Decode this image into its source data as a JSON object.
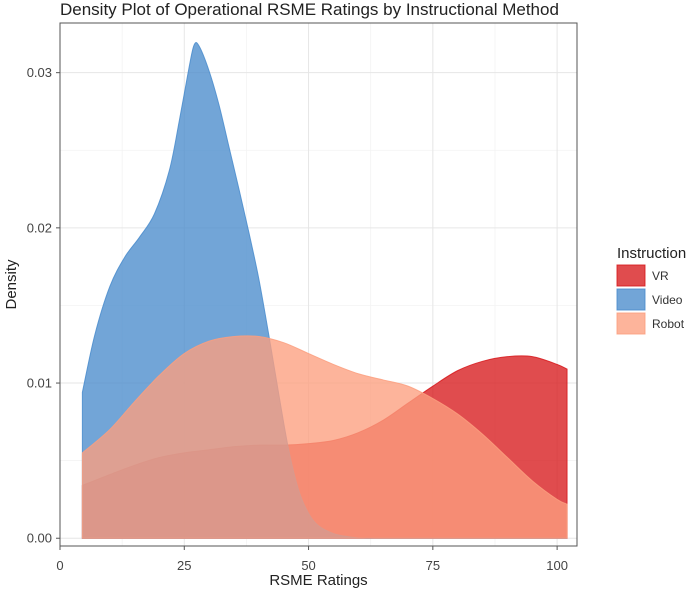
{
  "chart_data": {
    "type": "area",
    "title": "Density Plot of Operational RSME Ratings by Instructional Method",
    "xlabel": "RSME Ratings",
    "ylabel": "Density",
    "xlim": [
      0,
      104
    ],
    "ylim": [
      -0.0005,
      0.0332
    ],
    "x_ticks": [
      0,
      25,
      50,
      75,
      100
    ],
    "y_ticks": [
      0.0,
      0.01,
      0.02,
      0.03
    ],
    "x_tick_labels": [
      "0",
      "25",
      "50",
      "75",
      "100"
    ],
    "y_tick_labels": [
      "0.00",
      "0.01",
      "0.02",
      "0.03"
    ],
    "grid": true,
    "legend": {
      "title": "Instruction",
      "position": "right"
    },
    "series": [
      {
        "name": "VR",
        "color": "#d7191c",
        "x": [
          4.5,
          10,
          15,
          20,
          25,
          30,
          35,
          40,
          45,
          50,
          55,
          60,
          65,
          70,
          75,
          80,
          85,
          90,
          95,
          100,
          102
        ],
        "y": [
          0.0034,
          0.0041,
          0.0047,
          0.0052,
          0.0055,
          0.0057,
          0.0059,
          0.006,
          0.006,
          0.0061,
          0.0063,
          0.0068,
          0.0076,
          0.0087,
          0.0098,
          0.0108,
          0.0114,
          0.0117,
          0.0117,
          0.0112,
          0.0109
        ]
      },
      {
        "name": "Video",
        "color": "#4a8ccc",
        "x": [
          4.5,
          7,
          10,
          13,
          16,
          19,
          22,
          24,
          26,
          27,
          28,
          30,
          32,
          34,
          36,
          38,
          40,
          42,
          44,
          46,
          48,
          50,
          52,
          55,
          58,
          61,
          65,
          70,
          80,
          90,
          102
        ],
        "y": [
          0.0094,
          0.0131,
          0.0162,
          0.0181,
          0.0194,
          0.0209,
          0.0237,
          0.0269,
          0.0304,
          0.0318,
          0.0317,
          0.0301,
          0.0279,
          0.0252,
          0.0225,
          0.0197,
          0.0167,
          0.0131,
          0.0093,
          0.0057,
          0.0031,
          0.0016,
          0.0008,
          0.0003,
          0.0001,
          0.0,
          0.0,
          0.0,
          0.0,
          0.0,
          0.0
        ]
      },
      {
        "name": "Robot",
        "color": "#fc9f7f",
        "x": [
          4.5,
          10,
          15,
          20,
          25,
          30,
          35,
          40,
          45,
          50,
          55,
          60,
          65,
          70,
          75,
          80,
          85,
          90,
          95,
          100,
          102
        ],
        "y": [
          0.0055,
          0.007,
          0.0088,
          0.0105,
          0.0119,
          0.0127,
          0.013,
          0.013,
          0.0126,
          0.0119,
          0.0112,
          0.0106,
          0.0102,
          0.0098,
          0.009,
          0.008,
          0.0067,
          0.0052,
          0.0037,
          0.0025,
          0.0022
        ]
      }
    ]
  }
}
